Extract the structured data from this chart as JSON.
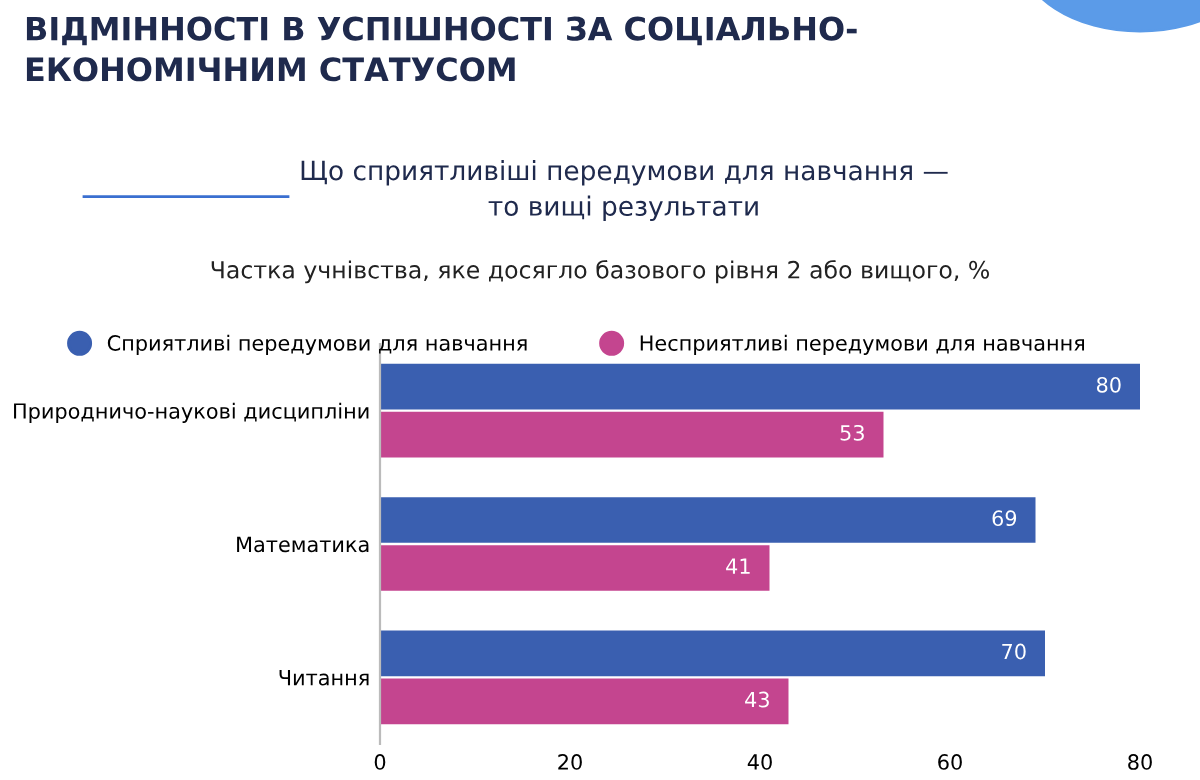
{
  "chart_data": {
    "type": "bar",
    "orientation": "horizontal",
    "title": "ВІДМІННОСТІ В УСПІШНОСТІ ЗА СОЦІАЛЬНО-\nЕКОНОМІЧНИМ СТАТУСОМ",
    "subtitle": "Що сприятливіші передумови для навчання —\nто вищі результати",
    "annotations": [
      "Частка учнівства, яке досягло базового рівня 2 або вищого, %"
    ],
    "categories": [
      "Природничо-наукові дисципліни",
      "Математика",
      "Читання"
    ],
    "series": [
      {
        "name": "Сприятливі передумови для навчання",
        "color": "#3a5fb0",
        "values": [
          80,
          69,
          70
        ]
      },
      {
        "name": "Несприятливі передумови для навчання",
        "color": "#c4458f",
        "values": [
          53,
          41,
          43
        ]
      }
    ],
    "xlim": [
      0,
      80
    ],
    "xticks": [
      0,
      20,
      40,
      60,
      80
    ],
    "data_labels": true,
    "grid": false,
    "legend": "top left",
    "marker": "circle"
  }
}
